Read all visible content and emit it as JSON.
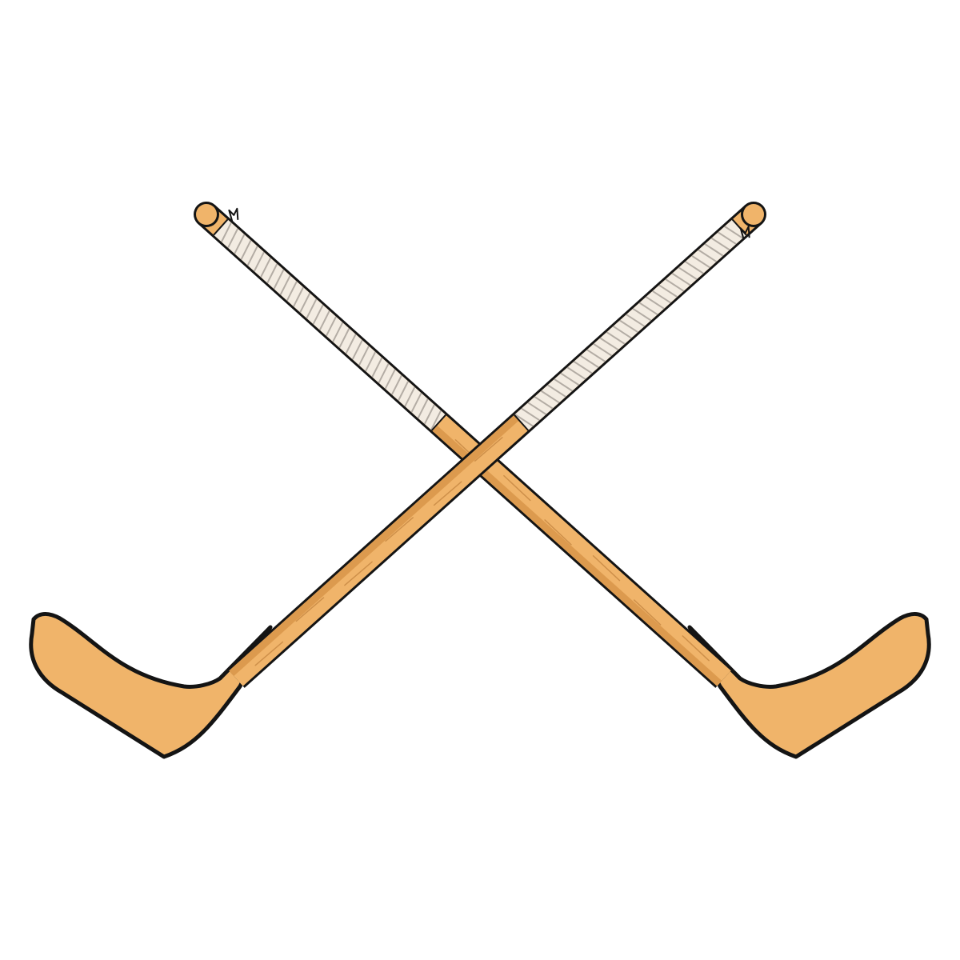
{
  "colors": {
    "background": "#ffffff",
    "wood_light": "#f0b46a",
    "wood_mid": "#dc9a4e",
    "wood_shadow": "#b97935",
    "tape": "#f3ece2",
    "tape_shadow": "#a9a29a",
    "outline": "#141414"
  }
}
